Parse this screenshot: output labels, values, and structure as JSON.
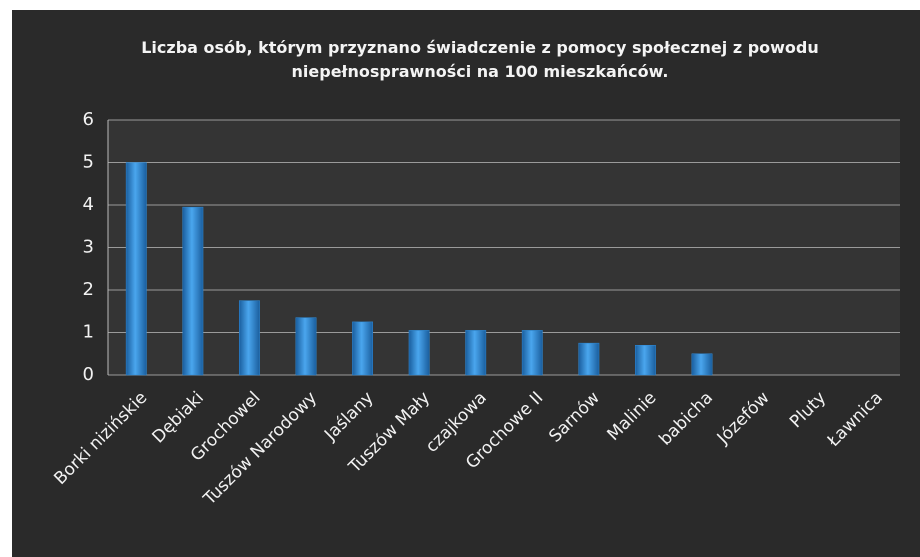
{
  "chart_data": {
    "type": "bar",
    "title": "Liczba osób, którym przyznano świadczenie z pomocy społecznej z powodu niepełnosprawności na 100 mieszkańców.",
    "categories": [
      "Borki nizińskie",
      "Dębiaki",
      "Grochowel",
      "Tuszów Narodowy",
      "Jaślany",
      "Tuszów Mały",
      "czajkowa",
      "Grochowe II",
      "Sarnów",
      "Malinie",
      "babicha",
      "Józefów",
      "Pluty",
      "Ławnica"
    ],
    "values": [
      5,
      3.95,
      1.75,
      1.35,
      1.25,
      1.05,
      1.05,
      1.05,
      0.75,
      0.7,
      0.5,
      0,
      0,
      0
    ],
    "color": "#2f8ad6",
    "ylim": [
      0,
      6
    ],
    "yticks": [
      0,
      1,
      2,
      3,
      4,
      5,
      6
    ],
    "grid": true
  }
}
